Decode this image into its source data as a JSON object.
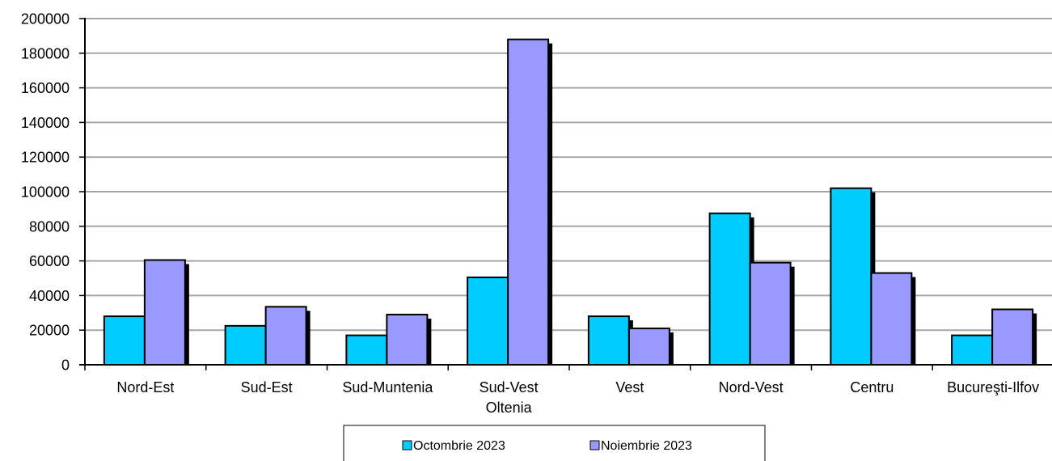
{
  "chart_data": {
    "type": "bar",
    "title": "",
    "xlabel": "",
    "ylabel": "",
    "ylim": [
      0,
      200000
    ],
    "yticks": [
      0,
      20000,
      40000,
      60000,
      80000,
      100000,
      120000,
      140000,
      160000,
      180000,
      200000
    ],
    "yticks_labels": [
      "0",
      "20000",
      "40000",
      "60000",
      "80000",
      "100000",
      "120000",
      "140000",
      "160000",
      "180000",
      "200000"
    ],
    "grid": true,
    "legend_position": "bottom",
    "categories": [
      [
        "Nord-Est"
      ],
      [
        "Sud-Est"
      ],
      [
        "Sud-Muntenia"
      ],
      [
        "Sud-Vest",
        "Oltenia"
      ],
      [
        "Vest"
      ],
      [
        "Nord-Vest"
      ],
      [
        "Centru"
      ],
      [
        "Bucureşti-Ilfov"
      ]
    ],
    "series": [
      {
        "name": "Octombrie 2023",
        "color": "#00CCFF",
        "values": [
          28000,
          22500,
          17000,
          50500,
          28000,
          87500,
          102000,
          17000
        ]
      },
      {
        "name": "Noiembrie 2023",
        "color": "#9999FF",
        "values": [
          60500,
          33500,
          29000,
          188000,
          21000,
          59000,
          53000,
          32000
        ]
      }
    ]
  }
}
